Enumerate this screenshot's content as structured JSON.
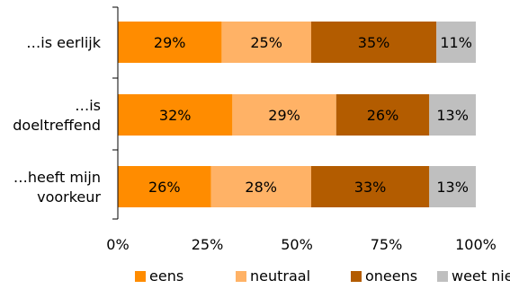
{
  "chart_data": {
    "type": "bar",
    "orientation": "horizontal",
    "stacked": true,
    "categories": [
      [
        "…is eerlijk"
      ],
      [
        "…is",
        "doeltreffend"
      ],
      [
        "…heeft mijn",
        "voorkeur"
      ]
    ],
    "series": [
      {
        "name": "eens",
        "color": "#FF8C00",
        "values": [
          29,
          32,
          26
        ]
      },
      {
        "name": "neutraal",
        "color": "#FFB266",
        "values": [
          25,
          29,
          28
        ]
      },
      {
        "name": "oneens",
        "color": "#B35C00",
        "values": [
          35,
          26,
          33
        ]
      },
      {
        "name": "weet niet",
        "color": "#BFBFBF",
        "values": [
          11,
          13,
          13
        ]
      }
    ],
    "data_labels": true,
    "value_suffix": "%",
    "xlim": [
      0,
      100
    ],
    "xticks": [
      0,
      25,
      50,
      75,
      100
    ],
    "xtick_labels": [
      "0%",
      "25%",
      "50%",
      "75%",
      "100%"
    ],
    "grid": false,
    "legend_position": "bottom"
  }
}
